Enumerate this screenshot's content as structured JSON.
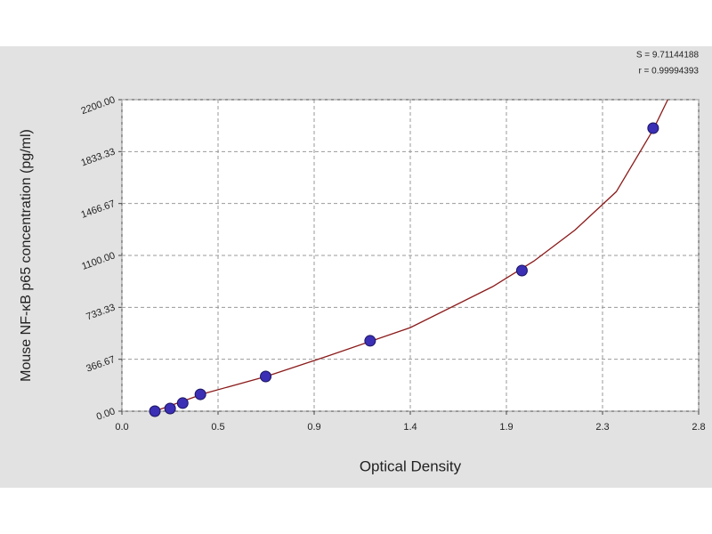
{
  "chart_data": {
    "type": "scatter",
    "annotations": [
      "S = 9.71144188",
      "r = 0.99994393"
    ],
    "x_label": "Optical Density",
    "y_label": "Mouse NF-κB p65 concentration (pg/ml)",
    "xlim": [
      0,
      2.8
    ],
    "ylim": [
      0,
      2200
    ],
    "xticks": [
      {
        "value": 0,
        "label": "0.0"
      },
      {
        "value": 0.4667,
        "label": "0.5"
      },
      {
        "value": 0.9333,
        "label": "0.9"
      },
      {
        "value": 1.4,
        "label": "1.4"
      },
      {
        "value": 1.8667,
        "label": "1.9"
      },
      {
        "value": 2.3333,
        "label": "2.3"
      },
      {
        "value": 2.8,
        "label": "2.8"
      }
    ],
    "yticks": [
      {
        "value": 0,
        "label": "0.00"
      },
      366.67,
      733.33,
      {
        "value": 1100,
        "label": "1100.00"
      },
      1466.67,
      1833.33,
      {
        "value": 2200,
        "label": "2200.00"
      }
    ],
    "grid": true,
    "series": [
      {
        "type": "line",
        "color": "#8b1a1a",
        "x": [
          0.16,
          0.4,
          0.7,
          1.0,
          1.4,
          1.8,
          2.0,
          2.2,
          2.4,
          2.58,
          2.65
        ],
        "values": [
          0,
          125,
          245,
          390,
          590,
          880,
          1060,
          1280,
          1550,
          1990,
          2200
        ]
      },
      {
        "type": "scatter",
        "color": "#3b2fb5",
        "x": [
          0.16,
          0.234,
          0.295,
          0.381,
          0.698,
          1.205,
          1.942,
          2.579
        ],
        "values": [
          0,
          19,
          57,
          119,
          245,
          497,
          993,
          1999
        ]
      }
    ]
  }
}
